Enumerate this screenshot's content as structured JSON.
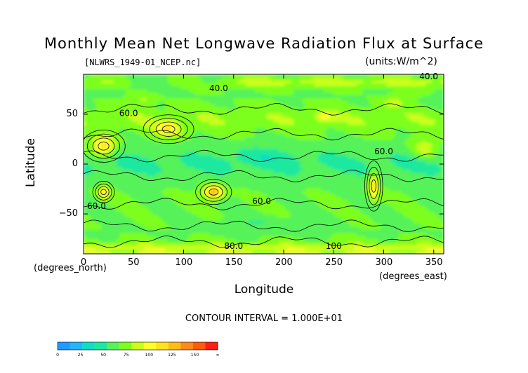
{
  "title": "Monthly Mean Net Longwave Radiation Flux at Surface",
  "subtitle": "[NLWRS_1949-01_NCEP.nc]",
  "units": "(units:W/m^2)",
  "contour_interval": "CONTOUR INTERVAL = 1.000E+01",
  "x_units_note": "(degrees_east)",
  "y_units_note": "(degrees_north)",
  "chart_data": {
    "type": "heatmap",
    "title": "Monthly Mean Net Longwave Radiation Flux at Surface",
    "xlabel": "Longitude",
    "ylabel": "Latitude",
    "xlim": [
      0,
      360
    ],
    "ylim": [
      -90,
      90
    ],
    "xticks": [
      0,
      50,
      100,
      150,
      200,
      250,
      300,
      350
    ],
    "yticks": [
      -50,
      0,
      50
    ],
    "contour_labels": [
      {
        "text": "40.0",
        "lon": 135,
        "lat": 73
      },
      {
        "text": "60.0",
        "lon": 45,
        "lat": 48
      },
      {
        "text": "60.0",
        "lon": 300,
        "lat": 10
      },
      {
        "text": "60.0",
        "lon": 13,
        "lat": -45
      },
      {
        "text": "60.0",
        "lon": 178,
        "lat": -40
      },
      {
        "text": "40.0",
        "lon": 345,
        "lat": 85
      },
      {
        "text": "80.0",
        "lon": 150,
        "lat": -85
      },
      {
        "text": "100",
        "lon": 250,
        "lat": -85
      }
    ],
    "colorbar": {
      "ticks": [
        "0",
        "25",
        "50",
        "75",
        "100",
        "125",
        "150",
        "∞"
      ],
      "colors": [
        "#1e9bff",
        "#27b4ff",
        "#11ddc6",
        "#1ee8a0",
        "#55f25a",
        "#7cff1f",
        "#c8ff1a",
        "#ffff2e",
        "#ffe120",
        "#ffba1c",
        "#ff8a1c",
        "#ff5a10",
        "#ff1e14"
      ]
    }
  }
}
